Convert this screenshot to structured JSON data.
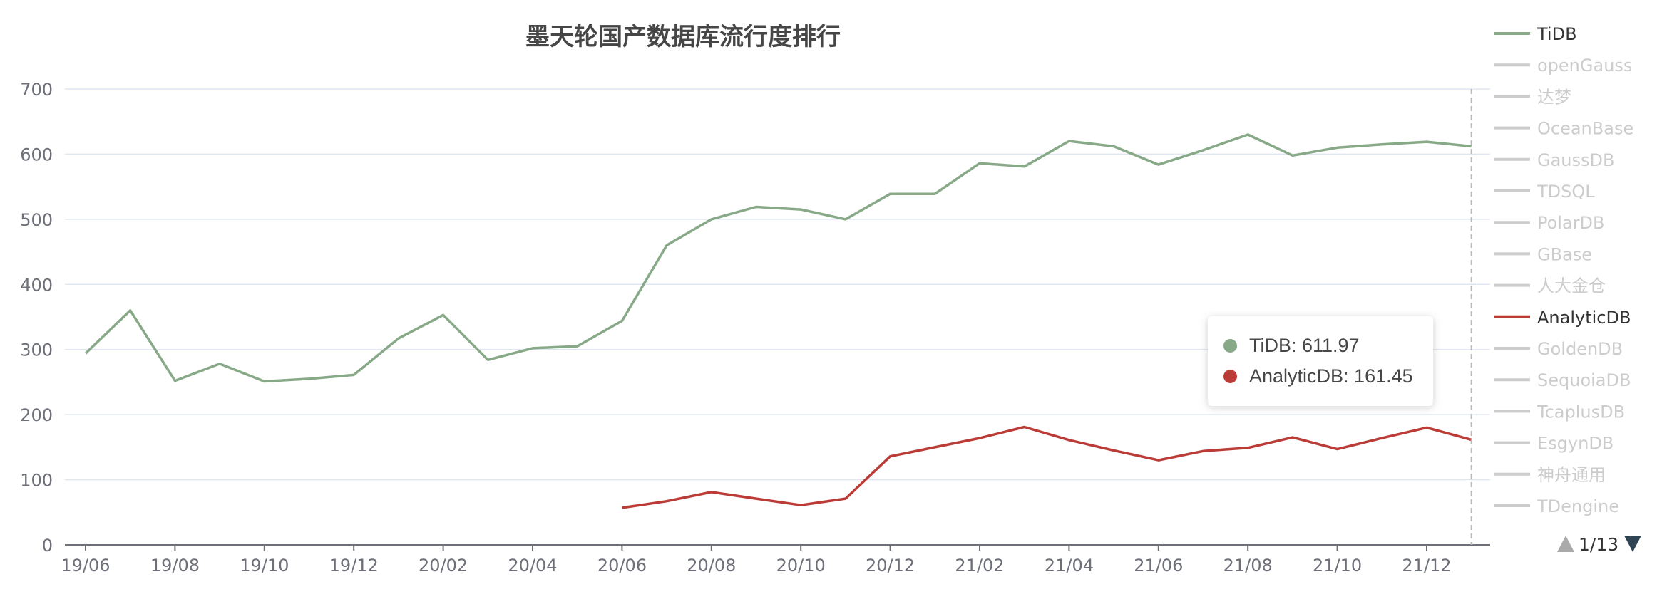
{
  "colors": {
    "TiDB": "#87a987",
    "AnalyticDB": "#bb3c37",
    "inactive": "#cccccc",
    "grid": "#e0e6f1",
    "axis_text": "#6e7079",
    "axis_line": "#6e7079"
  },
  "tooltip": {
    "rows": [
      {
        "series": "TiDB",
        "label": "TiDB: 611.97"
      },
      {
        "series": "AnalyticDB",
        "label": "AnalyticDB: 161.45"
      }
    ]
  },
  "legend": {
    "page_indicator": "1/13",
    "items": [
      {
        "name": "TiDB",
        "active": true
      },
      {
        "name": "openGauss",
        "active": false
      },
      {
        "name": "达梦",
        "active": false
      },
      {
        "name": "OceanBase",
        "active": false
      },
      {
        "name": "GaussDB",
        "active": false
      },
      {
        "name": "TDSQL",
        "active": false
      },
      {
        "name": "PolarDB",
        "active": false
      },
      {
        "name": "GBase",
        "active": false
      },
      {
        "name": "人大金仓",
        "active": false
      },
      {
        "name": "AnalyticDB",
        "active": true
      },
      {
        "name": "GoldenDB",
        "active": false
      },
      {
        "name": "SequoiaDB",
        "active": false
      },
      {
        "name": "TcaplusDB",
        "active": false
      },
      {
        "name": "EsgynDB",
        "active": false
      },
      {
        "name": "神舟通用",
        "active": false
      },
      {
        "name": "TDengine",
        "active": false
      }
    ]
  },
  "chart_data": {
    "type": "line",
    "title": "墨天轮国产数据库流行度排行",
    "xlabel": "",
    "ylabel": "",
    "ylim": [
      0,
      700
    ],
    "yticks": [
      0,
      100,
      200,
      300,
      400,
      500,
      600,
      700
    ],
    "grid": true,
    "legend_position": "right",
    "x": [
      "19/06",
      "19/07",
      "19/08",
      "19/09",
      "19/10",
      "19/11",
      "19/12",
      "20/01",
      "20/02",
      "20/03",
      "20/04",
      "20/05",
      "20/06",
      "20/07",
      "20/08",
      "20/09",
      "20/10",
      "20/11",
      "20/12",
      "21/01",
      "21/02",
      "21/03",
      "21/04",
      "21/05",
      "21/06",
      "21/07",
      "21/08",
      "21/09",
      "21/10",
      "21/11",
      "21/12",
      "22/01"
    ],
    "xticks": [
      "19/06",
      "19/08",
      "19/10",
      "19/12",
      "20/02",
      "20/04",
      "20/06",
      "20/08",
      "20/10",
      "20/12",
      "21/02",
      "21/04",
      "21/06",
      "21/08",
      "21/10",
      "21/12"
    ],
    "series": [
      {
        "name": "TiDB",
        "values": [
          294,
          360,
          252,
          278,
          251,
          255,
          261,
          317,
          353,
          284,
          302,
          305,
          344,
          460,
          500,
          519,
          515,
          500,
          539,
          539,
          586,
          581,
          620,
          612,
          584,
          606,
          630,
          598,
          610,
          615,
          619,
          611.97
        ]
      },
      {
        "name": "AnalyticDB",
        "values": [
          null,
          null,
          null,
          null,
          null,
          null,
          null,
          null,
          null,
          null,
          null,
          null,
          57,
          67,
          81,
          71,
          61,
          71,
          136,
          150,
          164,
          181,
          161,
          145,
          130,
          144,
          149,
          165,
          147,
          164,
          180,
          161.45
        ]
      }
    ]
  }
}
